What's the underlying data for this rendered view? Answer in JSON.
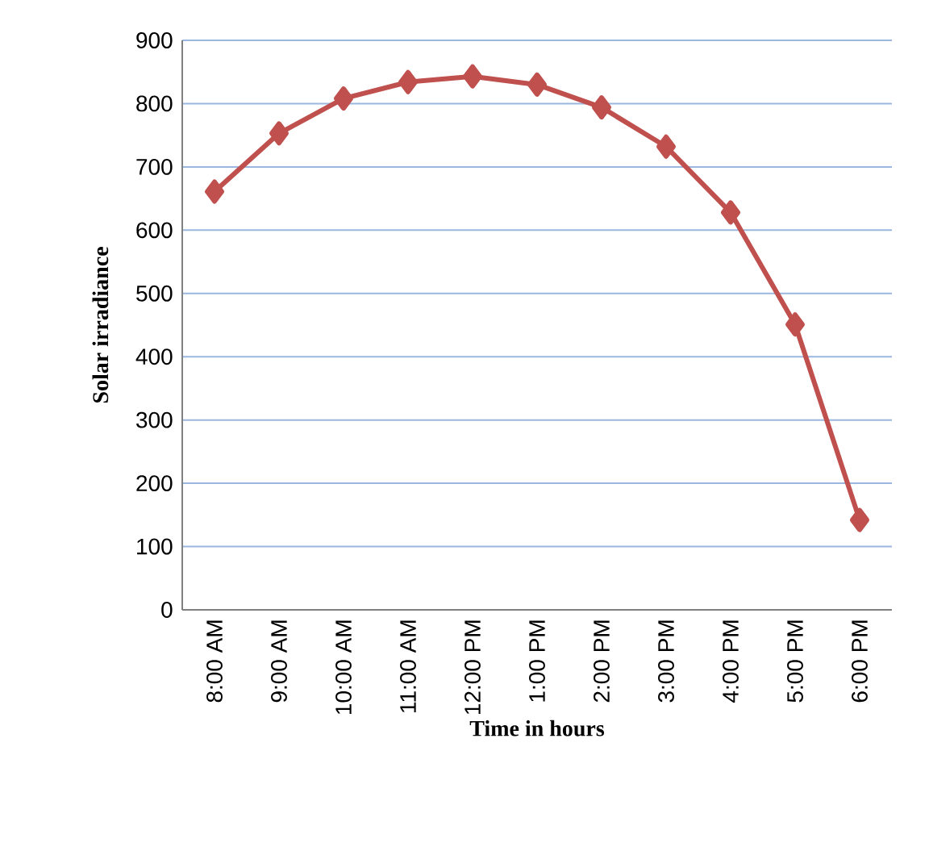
{
  "chart_data": {
    "type": "line",
    "xlabel": "Time in hours",
    "ylabel": "Solar irradiance",
    "categories": [
      "8:00 AM",
      "9:00 AM",
      "10:00 AM",
      "11:00 AM",
      "12:00 PM",
      "1:00 PM",
      "2:00 PM",
      "3:00 PM",
      "4:00 PM",
      "5:00 PM",
      "6:00 PM"
    ],
    "series": [
      {
        "color": "#c0504d",
        "values": [
          661,
          753,
          808,
          834,
          843,
          830,
          794,
          732,
          628,
          451,
          142
        ]
      }
    ],
    "ylim": [
      0,
      900
    ],
    "yticks": [
      0,
      100,
      200,
      300,
      400,
      500,
      600,
      700,
      800,
      900
    ],
    "grid": "y",
    "marker": "diamond",
    "line_style": "solid"
  }
}
